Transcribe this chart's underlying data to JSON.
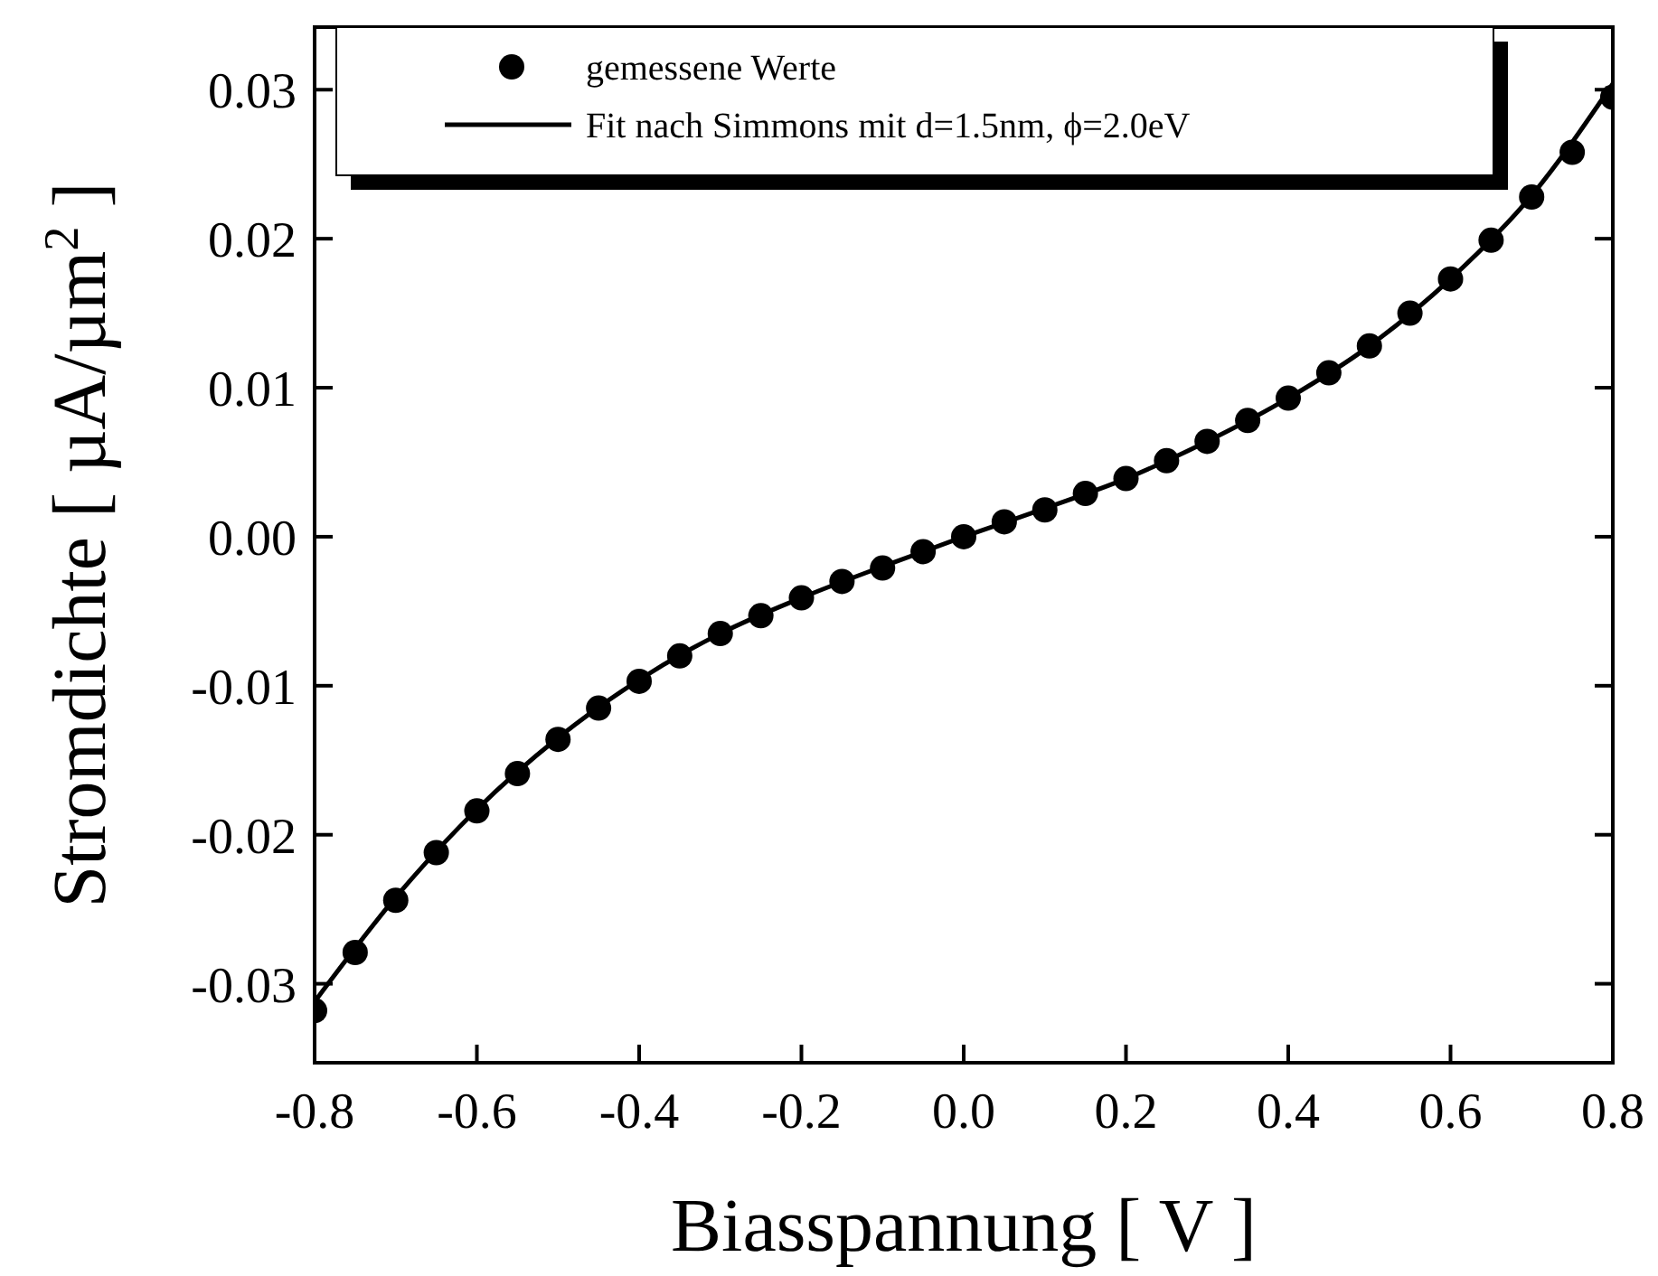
{
  "chart_data": {
    "type": "scatter",
    "xlabel": "Biasspannung [ V ]",
    "ylabel": "Stromdichte [ µA/µm$^{2}$ ]",
    "xlim": [
      -0.8,
      0.8
    ],
    "ylim": [
      -0.0353,
      0.0342
    ],
    "xticks": [
      {
        "value": -0.8,
        "label": "-0.8"
      },
      {
        "value": -0.6,
        "label": "-0.6"
      },
      {
        "value": -0.4,
        "label": "-0.4"
      },
      {
        "value": -0.2,
        "label": "-0.2"
      },
      {
        "value": 0,
        "label": "0.0"
      },
      {
        "value": 0.2,
        "label": "0.2"
      },
      {
        "value": 0.4,
        "label": "0.4"
      },
      {
        "value": 0.6,
        "label": "0.6"
      },
      {
        "value": 0.8,
        "label": "0.8"
      }
    ],
    "yticks": [
      {
        "value": -0.03,
        "label": "-0.03"
      },
      {
        "value": -0.02,
        "label": "-0.02"
      },
      {
        "value": -0.01,
        "label": "-0.01"
      },
      {
        "value": 0,
        "label": "0.00"
      },
      {
        "value": 0.01,
        "label": "0.01"
      },
      {
        "value": 0.02,
        "label": "0.02"
      },
      {
        "value": 0.03,
        "label": "0.03"
      }
    ],
    "legend": "top left",
    "series": [
      {
        "name": "gemessene Werte",
        "marker": "circle",
        "color": "#000000",
        "x": [
          -0.8,
          -0.75,
          -0.7,
          -0.65,
          -0.6,
          -0.55,
          -0.5,
          -0.45,
          -0.4,
          -0.35,
          -0.3,
          -0.25,
          -0.2,
          -0.15,
          -0.1,
          -0.05,
          0,
          0.05,
          0.1,
          0.15,
          0.2,
          0.25,
          0.3,
          0.35,
          0.4,
          0.45,
          0.5,
          0.55,
          0.6,
          0.65,
          0.7,
          0.75,
          0.8
        ],
        "values": [
          -0.0318,
          -0.0279,
          -0.0244,
          -0.0212,
          -0.0184,
          -0.0159,
          -0.0136,
          -0.0115,
          -0.0097,
          -0.008,
          -0.0065,
          -0.0053,
          -0.0041,
          -0.003,
          -0.0021,
          -0.001,
          0,
          0.001,
          0.0018,
          0.0029,
          0.0039,
          0.0051,
          0.0064,
          0.0078,
          0.0093,
          0.011,
          0.0128,
          0.015,
          0.0173,
          0.0199,
          0.0228,
          0.0258,
          0.0295
        ]
      },
      {
        "name": "Fit nach Simmons mit d=1.5nm, ϕ=2.0eV",
        "type": "line",
        "marker": "none",
        "line_style": "solid",
        "color": "#000000",
        "x": [
          -0.8,
          -0.7,
          -0.6,
          -0.5,
          -0.4,
          -0.3,
          -0.2,
          -0.1,
          0,
          0.1,
          0.2,
          0.3,
          0.4,
          0.5,
          0.6,
          0.7,
          0.8
        ],
        "values": [
          -0.0312,
          -0.0242,
          -0.0183,
          -0.0135,
          -0.0096,
          -0.0065,
          -0.0041,
          -0.002,
          0,
          0.0019,
          0.0039,
          0.0064,
          0.0093,
          0.0128,
          0.0173,
          0.0229,
          0.0304
        ]
      }
    ]
  }
}
